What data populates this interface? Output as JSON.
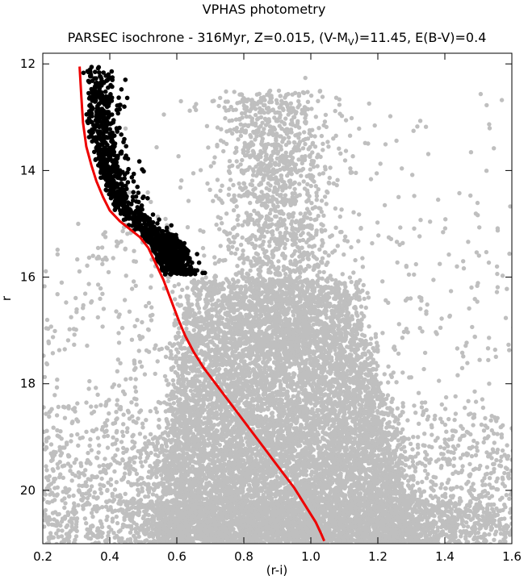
{
  "chart_data": {
    "type": "scatter",
    "title": "VPHAS photometry",
    "subtitle": {
      "before": "PARSEC isochrone - 316Myr, Z=0.015, (V-M",
      "sub": "V",
      "after": ")=11.45, E(B-V)=0.4"
    },
    "xlabel": "(r-i)",
    "ylabel": "r",
    "xlim": [
      0.2,
      1.6
    ],
    "ylim": [
      21,
      11.8
    ],
    "y_inverted": true,
    "x_ticks": [
      "0.2",
      "0.4",
      "0.6",
      "0.8",
      "1.0",
      "1.2",
      "1.4",
      "1.6"
    ],
    "y_ticks": [
      "12",
      "14",
      "16",
      "18",
      "20"
    ],
    "grid": false,
    "legend": "none",
    "series": [
      {
        "color": "#bfbfbf",
        "description_density": "dense field stars",
        "point_count_estimate": 14000
      },
      {
        "color": "#000000",
        "point_count_estimate": 900
      },
      {
        "color": "#ee0000",
        "x": [
          0.31,
          0.315,
          0.32,
          0.33,
          0.345,
          0.36,
          0.38,
          0.4,
          0.43,
          0.46,
          0.49,
          0.515,
          0.53,
          0.545,
          0.56,
          0.575,
          0.59,
          0.605,
          0.625,
          0.65,
          0.68,
          0.71,
          0.74,
          0.77,
          0.8,
          0.83,
          0.86,
          0.89,
          0.92,
          0.95,
          0.975,
          0.995,
          1.015,
          1.03,
          1.04
        ],
        "y": [
          12.05,
          12.6,
          13.1,
          13.55,
          13.9,
          14.2,
          14.5,
          14.75,
          14.95,
          15.1,
          15.25,
          15.45,
          15.65,
          15.85,
          16.05,
          16.3,
          16.55,
          16.8,
          17.1,
          17.4,
          17.7,
          17.95,
          18.2,
          18.45,
          18.7,
          18.95,
          19.2,
          19.45,
          19.7,
          19.95,
          20.2,
          20.4,
          20.6,
          20.8,
          20.95
        ]
      }
    ]
  }
}
